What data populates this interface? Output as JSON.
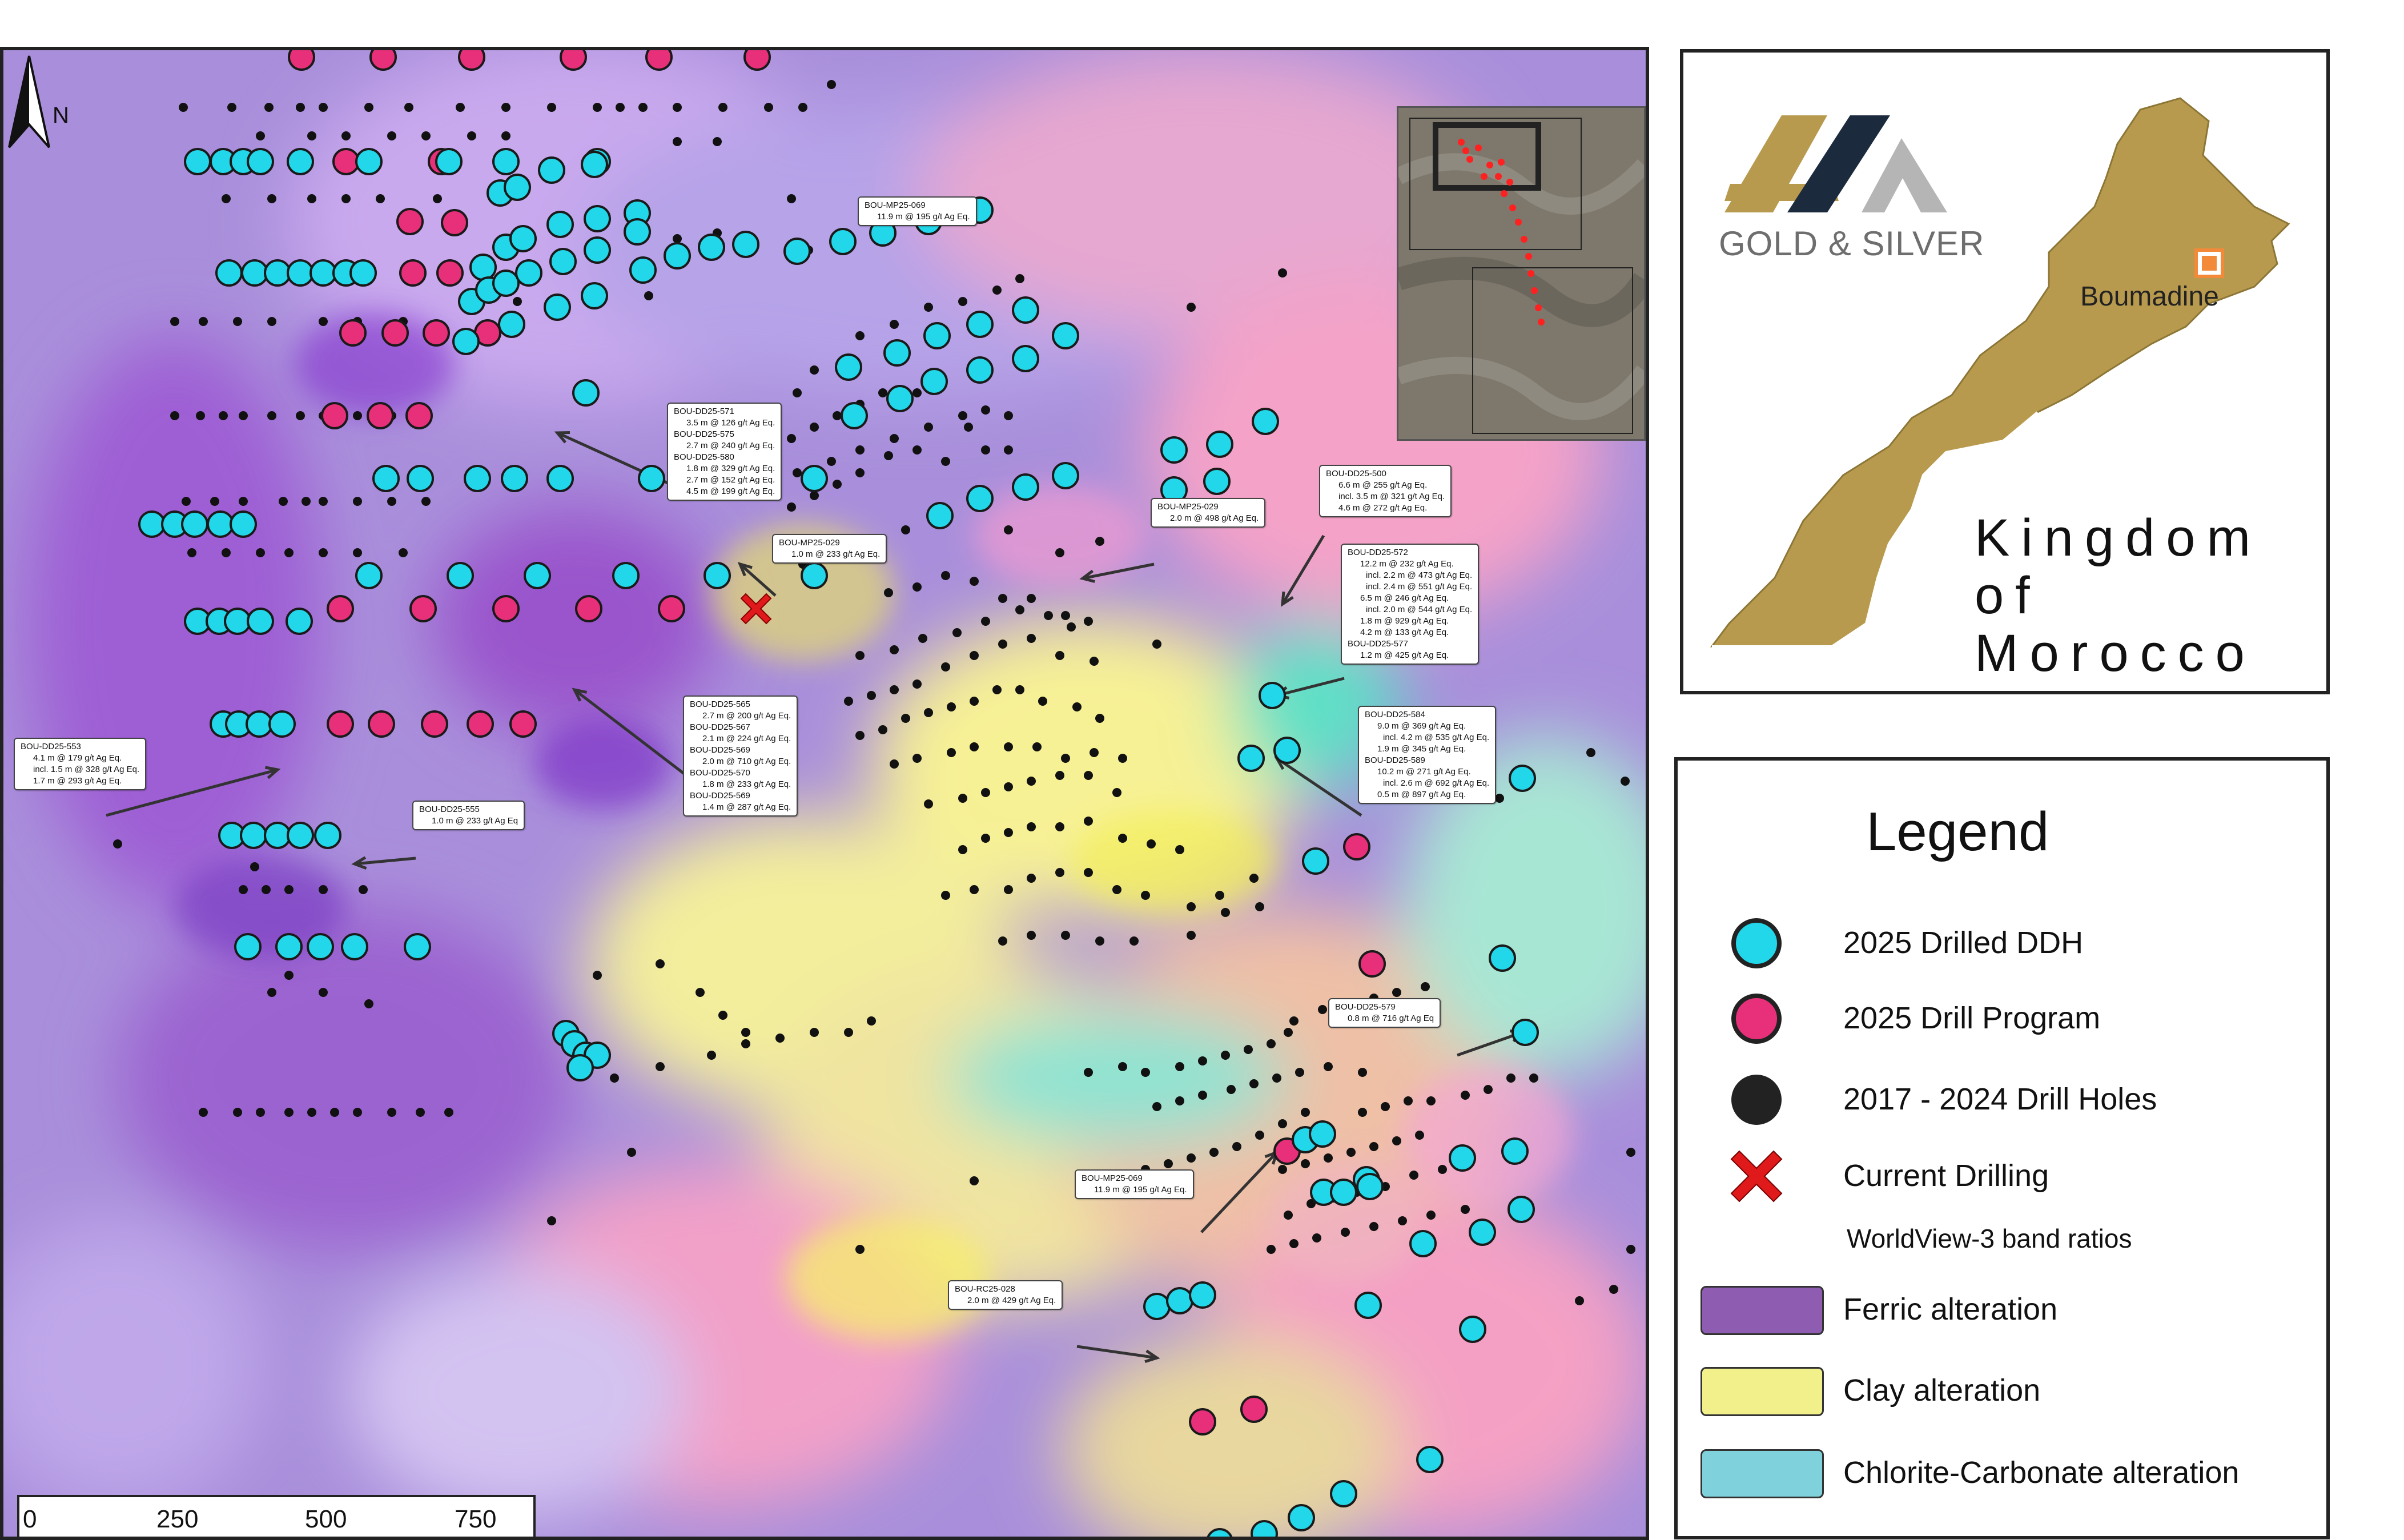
{
  "map": {
    "north_label": "N",
    "scale": {
      "ticks": [
        "0",
        "250",
        "500",
        "750"
      ],
      "unit": "m"
    },
    "current_drilling_marker": "x-icon"
  },
  "callouts": [
    {
      "id": "mp069-top",
      "lines": [
        "BOU-MP25-069",
        "11.9 m @ 195 g/t Ag Eq."
      ]
    },
    {
      "id": "dd571",
      "lines": [
        "BOU-DD25-571",
        "3.5 m @ 126 g/t Ag Eq.",
        "BOU-DD25-575",
        "2.7 m @ 240 g/t Ag Eq.",
        "BOU-DD25-580",
        "1.8 m @ 329 g/t Ag Eq.",
        "2.7 m @ 152 g/t Ag Eq.",
        "4.5 m @ 199 g/t Ag Eq."
      ]
    },
    {
      "id": "mp029a",
      "lines": [
        "BOU-MP25-029",
        "1.0 m @ 233 g/t Ag Eq."
      ]
    },
    {
      "id": "mp029b",
      "lines": [
        "BOU-MP25-029",
        "2.0 m @ 498 g/t Ag Eq."
      ]
    },
    {
      "id": "dd500",
      "lines": [
        "BOU-DD25-500",
        "6.6 m @ 255 g/t Ag Eq.",
        "incl. 3.5 m @ 321 g/t Ag Eq.",
        "4.6 m @ 272 g/t Ag Eq."
      ]
    },
    {
      "id": "dd572",
      "lines": [
        "BOU-DD25-572",
        "12.2 m @ 232 g/t Ag Eq.",
        "incl. 2.2 m @ 473 g/t Ag Eq.",
        "incl. 2.4 m @ 551 g/t Ag Eq.",
        "6.5 m @ 246 g/t Ag Eq.",
        "incl. 2.0 m @ 544 g/t Ag Eq.",
        "1.8 m @ 929 g/t Ag Eq.",
        "4.2 m @ 133 g/t Ag Eq.",
        "BOU-DD25-577",
        "1.2 m @ 425 g/t Ag Eq."
      ]
    },
    {
      "id": "dd553",
      "lines": [
        "BOU-DD25-553",
        "4.1 m @ 179 g/t Ag Eq.",
        "incl. 1.5 m @ 328 g/t Ag Eq.",
        "1.7 m @ 293 g/t Ag Eq."
      ]
    },
    {
      "id": "dd565",
      "lines": [
        "BOU-DD25-565",
        "2.7 m @ 200 g/t Ag Eq.",
        "BOU-DD25-567",
        "2.1 m @ 224 g/t Ag Eq.",
        "BOU-DD25-569",
        "2.0 m @ 710 g/t Ag Eq.",
        "BOU-DD25-570",
        "1.8 m @ 233 g/t Ag Eq.",
        "BOU-DD25-569",
        "1.4 m @ 287 g/t Ag Eq."
      ]
    },
    {
      "id": "dd555",
      "lines": [
        "BOU-DD25-555",
        "1.0 m @ 233 g/t Ag Eq"
      ]
    },
    {
      "id": "dd584",
      "lines": [
        "BOU-DD25-584",
        "9.0 m @ 369 g/t Ag Eq.",
        "incl. 4.2 m @ 535 g/t Ag Eq.",
        "1.9 m @ 345 g/t Ag Eq.",
        "BOU-DD25-589",
        "10.2 m @ 271 g/t Ag Eq.",
        "incl. 2.6 m @ 692 g/t Ag Eq.",
        "0.5 m @ 897 g/t Ag Eq."
      ]
    },
    {
      "id": "dd579",
      "lines": [
        "BOU-DD25-579",
        "0.8 m @ 716 g/t Ag Eq"
      ]
    },
    {
      "id": "mp069-bot",
      "lines": [
        "BOU-MP25-069",
        "11.9 m @ 195 g/t Ag Eq."
      ]
    },
    {
      "id": "rc028",
      "lines": [
        "BOU-RC25-028",
        "2.0 m @ 429 g/t Ag Eq."
      ]
    }
  ],
  "locator": {
    "brand": "GOLD & SILVER",
    "city": "Boumadine",
    "country_line1": "Kingdom of",
    "country_line2": "Morocco",
    "colors": {
      "country": "#b89a4e",
      "city_marker": "#f28a3a",
      "logo_gold": "#b89a4e",
      "logo_navy": "#1b2a3d",
      "logo_grey": "#b5b5b5"
    }
  },
  "legend": {
    "title": "Legend",
    "items": [
      {
        "label": "2025 Drilled DDH",
        "symbol": "circle",
        "color": "#22d7ea"
      },
      {
        "label": "2025 Drill Program",
        "symbol": "circle",
        "color": "#e8307a"
      },
      {
        "label": "2017 - 2024 Drill Holes",
        "symbol": "circle",
        "color": "#222222"
      },
      {
        "label": "Current Drilling",
        "symbol": "x-icon",
        "color": "#e01a1a"
      }
    ],
    "subheading": "WorldView-3 band ratios",
    "areas": [
      {
        "label": "Ferric alteration",
        "color": "#8e5cb0"
      },
      {
        "label": "Clay alteration",
        "color": "#f2f08a"
      },
      {
        "label": "Chlorite-Carbonate alteration",
        "color": "#7fd2dc"
      }
    ]
  }
}
